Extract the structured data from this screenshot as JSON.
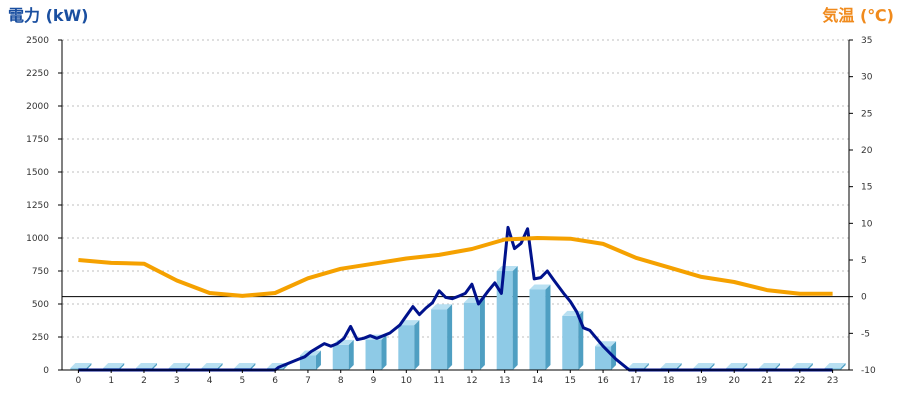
{
  "chart_data": {
    "type": "bar",
    "left_axis_title": "電力 (kW)",
    "right_axis_title": "気温 (℃)",
    "x": [
      "0",
      "1",
      "2",
      "3",
      "4",
      "5",
      "6",
      "7",
      "8",
      "9",
      "10",
      "11",
      "12",
      "13",
      "14",
      "15",
      "16",
      "17",
      "18",
      "19",
      "20",
      "21",
      "22",
      "23"
    ],
    "y_left": {
      "min": 0,
      "max": 2500,
      "ticks": [
        0,
        250,
        500,
        750,
        1000,
        1250,
        1500,
        1750,
        2000,
        2250,
        2500
      ]
    },
    "y_right": {
      "min": -10,
      "max": 35,
      "ticks": [
        -10,
        -5,
        0,
        5,
        10,
        15,
        20,
        25,
        30,
        35
      ]
    },
    "grid": true,
    "zero_line_right_axis": 0,
    "series": [
      {
        "kind": "bar",
        "axis": "left",
        "values": [
          0,
          0,
          0,
          0,
          0,
          0,
          0,
          110,
          190,
          230,
          340,
          460,
          510,
          750,
          610,
          410,
          180,
          0,
          0,
          0,
          0,
          0,
          0,
          0
        ]
      },
      {
        "kind": "line",
        "axis": "left",
        "points": [
          [
            0,
            0
          ],
          [
            1,
            0
          ],
          [
            2,
            0
          ],
          [
            3,
            0
          ],
          [
            4,
            0
          ],
          [
            5,
            0
          ],
          [
            6,
            0
          ],
          [
            6.1,
            20
          ],
          [
            6.4,
            50
          ],
          [
            6.7,
            80
          ],
          [
            6.9,
            100
          ],
          [
            7.1,
            140
          ],
          [
            7.3,
            170
          ],
          [
            7.5,
            200
          ],
          [
            7.7,
            180
          ],
          [
            7.9,
            200
          ],
          [
            8.1,
            240
          ],
          [
            8.3,
            330
          ],
          [
            8.5,
            230
          ],
          [
            8.7,
            240
          ],
          [
            8.9,
            260
          ],
          [
            9.1,
            240
          ],
          [
            9.3,
            260
          ],
          [
            9.5,
            280
          ],
          [
            9.8,
            340
          ],
          [
            10.0,
            410
          ],
          [
            10.2,
            480
          ],
          [
            10.4,
            420
          ],
          [
            10.6,
            470
          ],
          [
            10.8,
            510
          ],
          [
            11.0,
            600
          ],
          [
            11.2,
            550
          ],
          [
            11.4,
            540
          ],
          [
            11.6,
            560
          ],
          [
            11.8,
            580
          ],
          [
            12.0,
            650
          ],
          [
            12.2,
            500
          ],
          [
            12.5,
            600
          ],
          [
            12.7,
            660
          ],
          [
            12.9,
            580
          ],
          [
            13.1,
            1080
          ],
          [
            13.3,
            920
          ],
          [
            13.5,
            960
          ],
          [
            13.7,
            1070
          ],
          [
            13.9,
            690
          ],
          [
            14.1,
            700
          ],
          [
            14.3,
            750
          ],
          [
            14.5,
            680
          ],
          [
            14.8,
            580
          ],
          [
            15.0,
            520
          ],
          [
            15.2,
            440
          ],
          [
            15.4,
            320
          ],
          [
            15.6,
            300
          ],
          [
            15.8,
            240
          ],
          [
            16.0,
            180
          ],
          [
            16.2,
            130
          ],
          [
            16.4,
            80
          ],
          [
            16.6,
            40
          ],
          [
            16.8,
            0
          ],
          [
            17,
            0
          ],
          [
            18,
            0
          ],
          [
            19,
            0
          ],
          [
            20,
            0
          ],
          [
            21,
            0
          ],
          [
            22,
            0
          ],
          [
            23,
            0
          ]
        ]
      },
      {
        "kind": "line",
        "axis": "right",
        "values": [
          5.0,
          4.6,
          4.5,
          2.2,
          0.5,
          0.1,
          0.5,
          2.5,
          3.8,
          4.5,
          5.2,
          5.7,
          6.5,
          7.8,
          8.0,
          7.9,
          7.2,
          5.3,
          4.0,
          2.7,
          2.0,
          0.9,
          0.4,
          0.4
        ]
      }
    ],
    "colors": {
      "bar_fill": "#8ecae6",
      "bar_dark": "#4f9fc2",
      "power_line": "#00128c",
      "temp_line": "#f5a100",
      "left_title": "#1a4fa0",
      "right_title": "#f08a1c",
      "grid": "#bfbfbf",
      "axis": "#000000"
    }
  }
}
